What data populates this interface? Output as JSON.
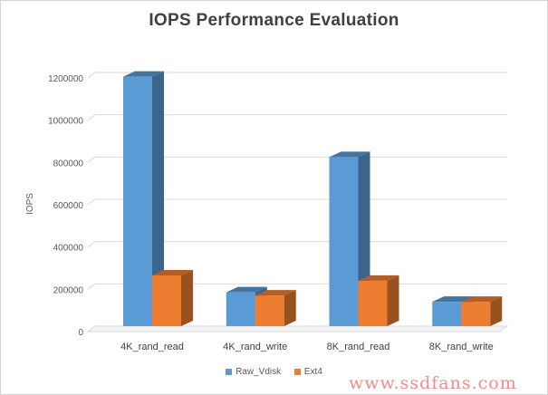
{
  "chart_data": {
    "type": "bar",
    "title": "IOPS Performance  Evaluation",
    "xlabel": "",
    "ylabel": "IOPS",
    "categories": [
      "4K_rand_read",
      "4K_rand_write",
      "8K_rand_read",
      "8K_rand_write"
    ],
    "series": [
      {
        "name": "Raw_Vdisk",
        "values": [
          1180000,
          160000,
          800000,
          115000
        ],
        "color": "#5b9bd5"
      },
      {
        "name": "Ext4",
        "values": [
          240000,
          145000,
          215000,
          115000
        ],
        "color": "#ed7d31"
      }
    ],
    "ylim": [
      0,
      1200000
    ],
    "yticks": [
      0,
      200000,
      400000,
      600000,
      800000,
      1000000,
      1200000
    ],
    "grid": true,
    "legend": "bottom",
    "style": "3d-column"
  },
  "watermark": "www.ssdfans.com"
}
